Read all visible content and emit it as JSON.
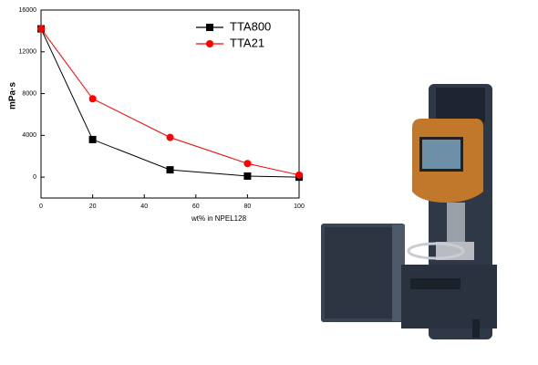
{
  "chart_data": {
    "type": "line",
    "x": [
      0,
      20,
      50,
      80,
      100
    ],
    "series": [
      {
        "name": "TTA800",
        "color": "#000000",
        "marker": "square",
        "values": [
          14200,
          3600,
          700,
          100,
          0
        ]
      },
      {
        "name": "TTA21",
        "color": "#ff0000",
        "marker": "circle",
        "values": [
          14200,
          7500,
          3800,
          1300,
          200
        ]
      }
    ],
    "xlim": [
      0,
      100
    ],
    "xticks": [
      0,
      20,
      40,
      60,
      80,
      100
    ],
    "ylim": [
      -2000,
      16000
    ],
    "yticks": [
      0,
      4000,
      8000,
      12000,
      16000
    ],
    "x_label": "wt% in NPEL128",
    "y_label": "mPa·s",
    "legend": "upper right"
  }
}
